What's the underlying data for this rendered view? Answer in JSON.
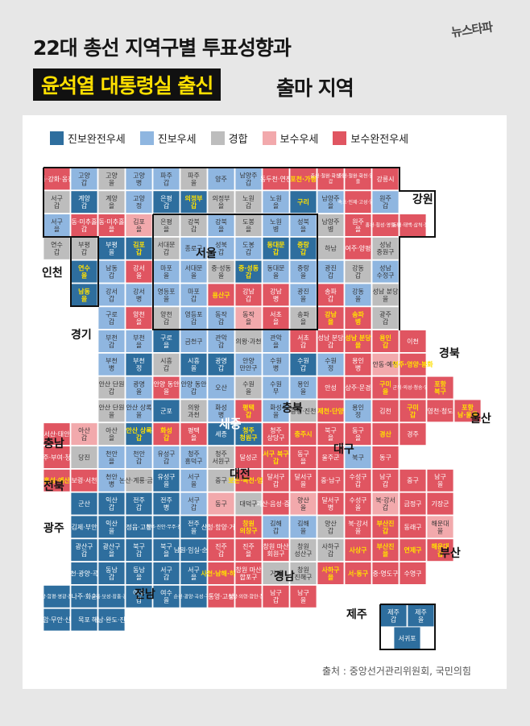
{
  "brand": "뉴스타파",
  "title_line1": "22대 총선 지역구별 투표성향과",
  "title_highlight": "윤석열 대통령실 출신",
  "title_rest": "출마 지역",
  "legend": [
    {
      "label": "진보완전우세",
      "color": "#2e6e9e"
    },
    {
      "label": "진보우세",
      "color": "#8fb6e0"
    },
    {
      "label": "경합",
      "color": "#bdbdbd"
    },
    {
      "label": "보수우세",
      "color": "#f2a9ac"
    },
    {
      "label": "보수완전우세",
      "color": "#e05561"
    }
  ],
  "colors": {
    "C": "#bdbdbd",
    "PS": "#2e6e9e",
    "P": "#8fb6e0",
    "S": "#f2a9ac",
    "SS": "#e05561",
    "hl": "#ffe000"
  },
  "regions": [
    {
      "name": "강원"
    },
    {
      "name": "인천"
    },
    {
      "name": "서울"
    },
    {
      "name": "경기"
    },
    {
      "name": "경북"
    },
    {
      "name": "충북"
    },
    {
      "name": "울산"
    },
    {
      "name": "충남"
    },
    {
      "name": "대구"
    },
    {
      "name": "세종"
    },
    {
      "name": "대전"
    },
    {
      "name": "전북"
    },
    {
      "name": "광주"
    },
    {
      "name": "부산"
    },
    {
      "name": "경남"
    },
    {
      "name": "전남"
    },
    {
      "name": "제주"
    }
  ],
  "source": "출처 : 중앙선거관리위원회, 국민의힘",
  "cells": [
    {
      "t": "중·강화·옹진",
      "c": "SS"
    },
    {
      "t": "고양 갑",
      "c": "P"
    },
    {
      "t": "고양 을",
      "c": "C"
    },
    {
      "t": "고양 병",
      "c": "P"
    },
    {
      "t": "파주 갑",
      "c": "P"
    },
    {
      "t": "파주 을",
      "c": "C"
    },
    {
      "t": "양주",
      "c": "P"
    },
    {
      "t": "남양주 갑",
      "c": "P"
    },
    {
      "t": "동두천·연천",
      "c": "SS"
    },
    {
      "t": "포천·가평",
      "c": "SS",
      "h": 1
    },
    {
      "t": "춘천·철원·화천·양구 갑",
      "c": "SS"
    },
    {
      "t": "춘천·철원·화천·양구 을",
      "c": "SS"
    },
    {
      "t": "강릉시",
      "c": "SS"
    },
    {
      "t": "서구 갑",
      "c": "C"
    },
    {
      "t": "계양 갑",
      "c": "PS"
    },
    {
      "t": "계양 을",
      "c": "C"
    },
    {
      "t": "고양 정",
      "c": "P"
    },
    {
      "t": "은평 갑",
      "c": "PS"
    },
    {
      "t": "의정부 갑",
      "c": "PS",
      "h": 1
    },
    {
      "t": "의정부 을",
      "c": "C"
    },
    {
      "t": "노원 갑",
      "c": "C"
    },
    {
      "t": "노원 을",
      "c": "P"
    },
    {
      "t": "구리",
      "c": "PS",
      "h": 1
    },
    {
      "t": "남양주 을",
      "c": "P"
    },
    {
      "t": "속초·인제·고성·양양",
      "c": "SS"
    },
    {
      "t": "원주 갑",
      "c": "P"
    },
    {
      "t": "서구 을",
      "c": "P"
    },
    {
      "t": "동·미추홀 갑",
      "c": "SS"
    },
    {
      "t": "동·미추홀 을",
      "c": "SS"
    },
    {
      "t": "김포 을",
      "c": "S"
    },
    {
      "t": "은평 을",
      "c": "C"
    },
    {
      "t": "강북 갑",
      "c": "C"
    },
    {
      "t": "강북 을",
      "c": "P"
    },
    {
      "t": "도봉 을",
      "c": "C"
    },
    {
      "t": "노원 병",
      "c": "P"
    },
    {
      "t": "성북 을",
      "c": "P"
    },
    {
      "t": "남양주 병",
      "c": "C"
    },
    {
      "t": "원주 을",
      "c": "SS"
    },
    {
      "t": "홍천·횡성·영월·평창",
      "c": "SS"
    },
    {
      "t": "동해·태백·삼척·정선",
      "c": "SS"
    },
    {
      "t": "연수 갑",
      "c": "C"
    },
    {
      "t": "부평 갑",
      "c": "C"
    },
    {
      "t": "부평 을",
      "c": "PS"
    },
    {
      "t": "김포 갑",
      "c": "PS",
      "h": 1
    },
    {
      "t": "서대문 갑",
      "c": "C"
    },
    {
      "t": "종로구",
      "c": "P"
    },
    {
      "t": "성북 갑",
      "c": "P"
    },
    {
      "t": "도봉 갑",
      "c": "P"
    },
    {
      "t": "동대문 갑",
      "c": "PS",
      "h": 1
    },
    {
      "t": "중랑 갑",
      "c": "PS",
      "h": 1
    },
    {
      "t": "하남",
      "c": "C"
    },
    {
      "t": "여주·양평",
      "c": "SS"
    },
    {
      "t": "성남 중원구",
      "c": "C"
    },
    {
      "t": "연수 을",
      "c": "PS",
      "h": 1
    },
    {
      "t": "남동 갑",
      "c": "P"
    },
    {
      "t": "강서 을",
      "c": "SS"
    },
    {
      "t": "마포 을",
      "c": "P"
    },
    {
      "t": "서대문 을",
      "c": "P"
    },
    {
      "t": "중·성동 을",
      "c": "C"
    },
    {
      "t": "중·성동 갑",
      "c": "PS",
      "h": 1
    },
    {
      "t": "동대문 을",
      "c": "P"
    },
    {
      "t": "중랑 을",
      "c": "P"
    },
    {
      "t": "광진 갑",
      "c": "P"
    },
    {
      "t": "강동 갑",
      "c": "C"
    },
    {
      "t": "성남 수정구",
      "c": "P"
    },
    {
      "t": "남동 을",
      "c": "PS",
      "h": 1
    },
    {
      "t": "강서 갑",
      "c": "P"
    },
    {
      "t": "강서 병",
      "c": "P"
    },
    {
      "t": "영등포 을",
      "c": "P"
    },
    {
      "t": "마포 갑",
      "c": "P"
    },
    {
      "t": "용산구",
      "c": "SS",
      "h": 1
    },
    {
      "t": "강남 갑",
      "c": "SS"
    },
    {
      "t": "강남 병",
      "c": "SS"
    },
    {
      "t": "광진 을",
      "c": "P"
    },
    {
      "t": "송파 갑",
      "c": "SS"
    },
    {
      "t": "강동 을",
      "c": "P"
    },
    {
      "t": "성남 분당 을",
      "c": "C"
    },
    {
      "t": "구로 갑",
      "c": "P"
    },
    {
      "t": "양천 을",
      "c": "SS"
    },
    {
      "t": "양천 갑",
      "c": "C"
    },
    {
      "t": "영등포 갑",
      "c": "P"
    },
    {
      "t": "동작 갑",
      "c": "P"
    },
    {
      "t": "동작 을",
      "c": "S"
    },
    {
      "t": "서초 을",
      "c": "SS"
    },
    {
      "t": "송파 을",
      "c": "C"
    },
    {
      "t": "강남 을",
      "c": "SS",
      "h": 1
    },
    {
      "t": "송파 병",
      "c": "SS",
      "h": 1
    },
    {
      "t": "광주 갑",
      "c": "C"
    },
    {
      "t": "부천 갑",
      "c": "P"
    },
    {
      "t": "부천 을",
      "c": "P"
    },
    {
      "t": "구로 을",
      "c": "PS"
    },
    {
      "t": "금천구",
      "c": "P"
    },
    {
      "t": "관악 갑",
      "c": "P"
    },
    {
      "t": "의왕·과천",
      "c": "C"
    },
    {
      "t": "관악 을",
      "c": "P"
    },
    {
      "t": "서초 갑",
      "c": "SS"
    },
    {
      "t": "성남 분당 갑",
      "c": "SS"
    },
    {
      "t": "성남 분당 을",
      "c": "SS",
      "h": 1
    },
    {
      "t": "용인 갑",
      "c": "SS",
      "h": 1
    },
    {
      "t": "이천",
      "c": "SS"
    },
    {
      "t": "부천 병",
      "c": "P"
    },
    {
      "t": "부천 정",
      "c": "PS"
    },
    {
      "t": "시흥 갑",
      "c": "C"
    },
    {
      "t": "시흥 을",
      "c": "PS"
    },
    {
      "t": "광명 갑",
      "c": "PS"
    },
    {
      "t": "안양 만안구",
      "c": "P"
    },
    {
      "t": "수원 병",
      "c": "P"
    },
    {
      "t": "수원 갑",
      "c": "PS"
    },
    {
      "t": "수원 정",
      "c": "P"
    },
    {
      "t": "용인 병",
      "c": "SS"
    },
    {
      "t": "안동·예천",
      "c": "S"
    },
    {
      "t": "영주·영양·봉화",
      "c": "SS",
      "h": 1
    },
    {
      "t": "안산 단원 갑",
      "c": "C"
    },
    {
      "t": "광명 을",
      "c": "P"
    },
    {
      "t": "안양 동안 을",
      "c": "SS"
    },
    {
      "t": "안양 동안 갑",
      "c": "P"
    },
    {
      "t": "오산",
      "c": "P"
    },
    {
      "t": "수원 을",
      "c": "C"
    },
    {
      "t": "수원 무",
      "c": "P"
    },
    {
      "t": "용인 을",
      "c": "P"
    },
    {
      "t": "안성",
      "c": "SS"
    },
    {
      "t": "상주·문경",
      "c": "SS"
    },
    {
      "t": "구미 을",
      "c": "SS",
      "h": 1
    },
    {
      "t": "군위·의성·청송·영덕",
      "c": "SS"
    },
    {
      "t": "포항 북구",
      "c": "SS",
      "h": 1
    },
    {
      "t": "안산 단원 을",
      "c": "C"
    },
    {
      "t": "안산 상록 을",
      "c": "P"
    },
    {
      "t": "군포",
      "c": "PS"
    },
    {
      "t": "의왕 과천",
      "c": "C"
    },
    {
      "t": "화성 병",
      "c": "P"
    },
    {
      "t": "평택 갑",
      "c": "SS",
      "h": 1
    },
    {
      "t": "화성 을",
      "c": "P"
    },
    {
      "t": "증평·진천",
      "c": "C"
    },
    {
      "t": "제천·단양",
      "c": "SS",
      "h": 1
    },
    {
      "t": "용인 정",
      "c": "P"
    },
    {
      "t": "김천",
      "c": "SS"
    },
    {
      "t": "구미 갑",
      "c": "SS",
      "h": 1
    },
    {
      "t": "영천·청도",
      "c": "SS"
    },
    {
      "t": "포항 남·울릉",
      "c": "SS",
      "h": 1
    },
    {
      "t": "서산·태안",
      "c": "SS"
    },
    {
      "t": "아산 갑",
      "c": "S"
    },
    {
      "t": "아산 을",
      "c": "C"
    },
    {
      "t": "안산 상록 갑",
      "c": "PS",
      "h": 1
    },
    {
      "t": "화성 갑",
      "c": "SS",
      "h": 1
    },
    {
      "t": "평택 을",
      "c": "SS"
    },
    {
      "t": "세종",
      "c": "PS"
    },
    {
      "t": "청주 청원구",
      "c": "PS",
      "h": 1
    },
    {
      "t": "청주 상당구",
      "c": "SS"
    },
    {
      "t": "충주시",
      "c": "SS",
      "h": 1
    },
    {
      "t": "북구 을",
      "c": "SS"
    },
    {
      "t": "동구 을",
      "c": "SS"
    },
    {
      "t": "경산",
      "c": "SS",
      "h": 1
    },
    {
      "t": "경주",
      "c": "SS"
    },
    {
      "t": "공주·부여·청양",
      "c": "SS"
    },
    {
      "t": "당진",
      "c": "C"
    },
    {
      "t": "천안 을",
      "c": "P"
    },
    {
      "t": "천안 갑",
      "c": "P"
    },
    {
      "t": "유성구 갑",
      "c": "P"
    },
    {
      "t": "청주 흥덕구",
      "c": "P"
    },
    {
      "t": "청주 서원구",
      "c": "C"
    },
    {
      "t": "달성군",
      "c": "SS"
    },
    {
      "t": "서구 북구 갑",
      "c": "SS",
      "h": 1
    },
    {
      "t": "동구 을",
      "c": "SS"
    },
    {
      "t": "울주군",
      "c": "SS"
    },
    {
      "t": "북구",
      "c": "P"
    },
    {
      "t": "동구",
      "c": "SS"
    },
    {
      "t": "홍성·예산",
      "c": "SS",
      "h": 1
    },
    {
      "t": "보령·서천",
      "c": "SS"
    },
    {
      "t": "천안 병",
      "c": "P"
    },
    {
      "t": "논산·계룡·금산",
      "c": "C"
    },
    {
      "t": "유성구 을",
      "c": "PS"
    },
    {
      "t": "서구 을",
      "c": "P"
    },
    {
      "t": "중구",
      "c": "C"
    },
    {
      "t": "보은·옥천·영동",
      "c": "SS",
      "h": 1
    },
    {
      "t": "달서구 갑",
      "c": "SS"
    },
    {
      "t": "달서구 을",
      "c": "SS"
    },
    {
      "t": "중·남구",
      "c": "SS"
    },
    {
      "t": "수성구 갑",
      "c": "SS"
    },
    {
      "t": "남구 갑",
      "c": "SS"
    },
    {
      "t": "중구",
      "c": "SS"
    },
    {
      "t": "남구 을",
      "c": "SS"
    },
    {
      "t": "군산",
      "c": "PS"
    },
    {
      "t": "익산 갑",
      "c": "PS"
    },
    {
      "t": "전주 갑",
      "c": "PS"
    },
    {
      "t": "전주 병",
      "c": "PS"
    },
    {
      "t": "서구 갑",
      "c": "P"
    },
    {
      "t": "동구",
      "c": "S"
    },
    {
      "t": "대덕구",
      "c": "C"
    },
    {
      "t": "괴산·음성·증평",
      "c": "SS"
    },
    {
      "t": "양산 을",
      "c": "S"
    },
    {
      "t": "달서구 병",
      "c": "SS"
    },
    {
      "t": "수성구 을",
      "c": "SS"
    },
    {
      "t": "북·강서 갑",
      "c": "S"
    },
    {
      "t": "금정구",
      "c": "SS"
    },
    {
      "t": "기장군",
      "c": "SS"
    },
    {
      "t": "김제·부안",
      "c": "PS"
    },
    {
      "t": "익산 을",
      "c": "PS"
    },
    {
      "t": "정읍·고창",
      "c": "PS"
    },
    {
      "t": "완주·진안·무주·장수",
      "c": "PS"
    },
    {
      "t": "전주 을",
      "c": "PS"
    },
    {
      "t": "산청·함양·거창",
      "c": "SS"
    },
    {
      "t": "창원 의창구",
      "c": "SS",
      "h": 1
    },
    {
      "t": "김해 갑",
      "c": "P"
    },
    {
      "t": "김해 을",
      "c": "P"
    },
    {
      "t": "양산 갑",
      "c": "C"
    },
    {
      "t": "북·강서 을",
      "c": "SS"
    },
    {
      "t": "부산진 갑",
      "c": "SS",
      "h": 1
    },
    {
      "t": "동래구",
      "c": "SS"
    },
    {
      "t": "해운대 을",
      "c": "S"
    },
    {
      "t": "광산구 갑",
      "c": "PS"
    },
    {
      "t": "광산구 을",
      "c": "PS"
    },
    {
      "t": "북구 갑",
      "c": "PS"
    },
    {
      "t": "북구 을",
      "c": "PS"
    },
    {
      "t": "남원·임실·순창",
      "c": "PS"
    },
    {
      "t": "진주 갑",
      "c": "SS"
    },
    {
      "t": "진주 을",
      "c": "SS"
    },
    {
      "t": "창원 마산 회원구",
      "c": "SS"
    },
    {
      "t": "창원 성산구",
      "c": "C"
    },
    {
      "t": "사하구 갑",
      "c": "C"
    },
    {
      "t": "사상구",
      "c": "SS",
      "h": 1
    },
    {
      "t": "부산진 을",
      "c": "SS",
      "h": 1
    },
    {
      "t": "연제구",
      "c": "SS",
      "h": 1
    },
    {
      "t": "해운대 갑",
      "c": "SS",
      "h": 1
    },
    {
      "t": "순천·광양·곡성",
      "c": "PS"
    },
    {
      "t": "동남 갑",
      "c": "PS"
    },
    {
      "t": "동남 을",
      "c": "PS"
    },
    {
      "t": "서구 갑",
      "c": "PS"
    },
    {
      "t": "서구 을",
      "c": "PS"
    },
    {
      "t": "사천·남해·하동",
      "c": "SS",
      "h": 1
    },
    {
      "t": "창원 마산 합포구",
      "c": "SS"
    },
    {
      "t": "거제",
      "c": "C"
    },
    {
      "t": "창원 진해구",
      "c": "C"
    },
    {
      "t": "사하구 을",
      "c": "SS",
      "h": 1
    },
    {
      "t": "서·동구",
      "c": "SS",
      "h": 1
    },
    {
      "t": "중·영도구",
      "c": "SS"
    },
    {
      "t": "수영구",
      "c": "SS"
    },
    {
      "t": "담양·함평·영광·장성",
      "c": "PS"
    },
    {
      "t": "나주·화순",
      "c": "PS"
    },
    {
      "t": "고흥·보성·장흥·강진",
      "c": "PS"
    },
    {
      "t": "여수 갑",
      "c": "PS"
    },
    {
      "t": "여수 을",
      "c": "PS"
    },
    {
      "t": "순천·광양·곡성·구례",
      "c": "PS"
    },
    {
      "t": "통영·고성",
      "c": "SS"
    },
    {
      "t": "밀양·의령·함안·창녕",
      "c": "SS"
    },
    {
      "t": "남구 갑",
      "c": "SS"
    },
    {
      "t": "남구 을",
      "c": "SS"
    },
    {
      "t": "영암·무안·신안",
      "c": "PS"
    },
    {
      "t": "목포",
      "c": "PS"
    },
    {
      "t": "해남·완도·진도",
      "c": "PS"
    },
    {
      "t": "제주 갑",
      "c": "PS"
    },
    {
      "t": "제주 을",
      "c": "PS"
    },
    {
      "t": "서귀포",
      "c": "PS"
    }
  ]
}
